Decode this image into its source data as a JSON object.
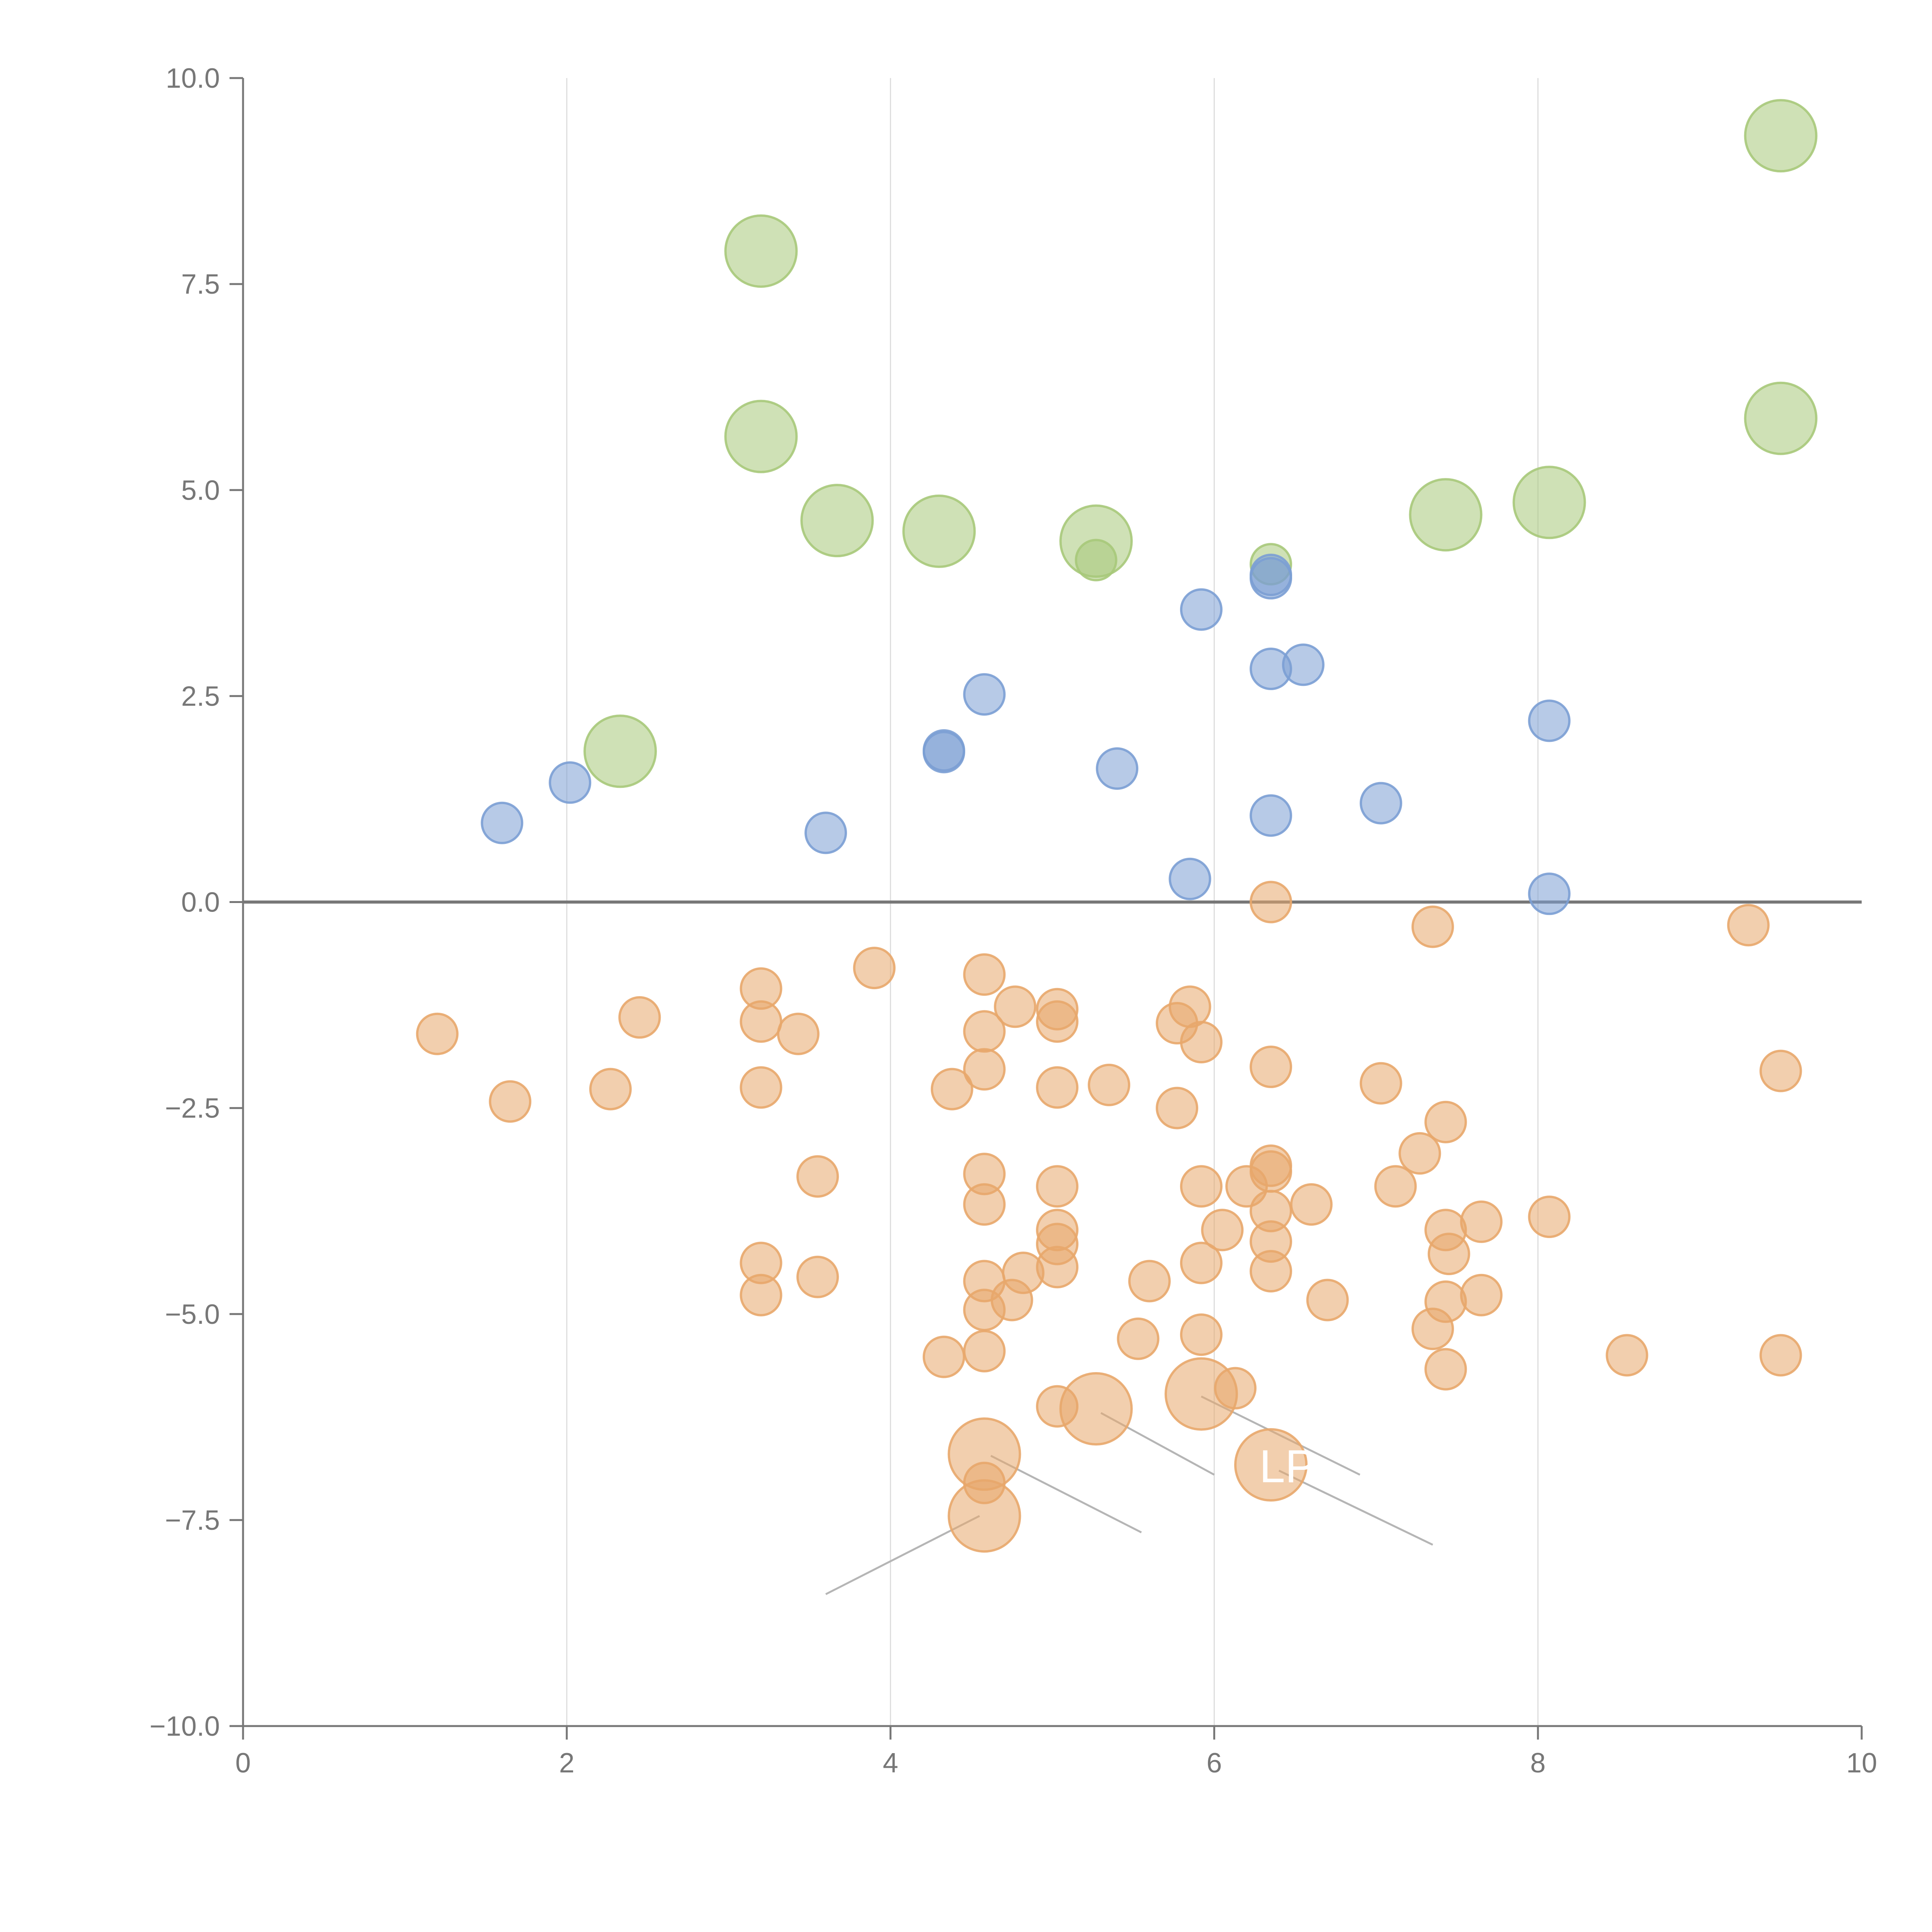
{
  "chart_data": {
    "type": "scatter",
    "title": "",
    "xlabel": "",
    "ylabel": "",
    "xlim": [
      0,
      10
    ],
    "ylim": [
      -10,
      10
    ],
    "x_ticks": [
      0,
      2,
      4,
      6,
      8,
      10
    ],
    "y_ticks": [
      -10,
      -7.5,
      -5,
      -2.5,
      0,
      2.5,
      5,
      7.5,
      10
    ],
    "x_tick_labels": [
      "0",
      "2",
      "4",
      "6",
      "8",
      "10"
    ],
    "y_tick_labels": [
      "−10.0",
      "−7.5",
      "−5.0",
      "−2.5",
      "0.0",
      "2.5",
      "5.0",
      "7.5",
      "10.0"
    ],
    "vertical_gridlines": [
      2,
      4,
      6,
      8
    ],
    "zero_line": 0,
    "colors": {
      "green": "#a7c97a",
      "blue": "#7b9fd4",
      "orange": "#e8a76b",
      "axis": "#777777",
      "grid": "#dddddd",
      "leader": "#b5b5b5"
    },
    "series": [
      {
        "name": "green",
        "color": "#a7c97a",
        "size": "large",
        "points": [
          [
            9.5,
            9.3
          ],
          [
            3.2,
            7.9
          ],
          [
            3.2,
            5.65
          ],
          [
            3.67,
            4.63
          ],
          [
            4.3,
            4.5
          ],
          [
            5.27,
            4.38
          ],
          [
            7.43,
            4.7
          ],
          [
            8.07,
            4.85
          ],
          [
            9.5,
            5.87
          ],
          [
            2.33,
            1.83
          ]
        ]
      },
      {
        "name": "green-small",
        "color": "#a7c97a",
        "size": "small",
        "points": [
          [
            5.27,
            4.15
          ],
          [
            6.35,
            4.1
          ]
        ]
      },
      {
        "name": "blue",
        "color": "#7b9fd4",
        "size": "small",
        "points": [
          [
            6.35,
            3.97
          ],
          [
            6.35,
            3.93
          ],
          [
            5.92,
            3.55
          ],
          [
            6.35,
            2.83
          ],
          [
            6.55,
            2.88
          ],
          [
            4.58,
            2.52
          ],
          [
            8.07,
            2.2
          ],
          [
            4.33,
            1.84
          ],
          [
            4.33,
            1.82
          ],
          [
            2.02,
            1.45
          ],
          [
            1.6,
            0.96
          ],
          [
            5.4,
            1.62
          ],
          [
            7.03,
            1.2
          ],
          [
            6.35,
            1.05
          ],
          [
            3.6,
            0.84
          ],
          [
            5.85,
            0.28
          ],
          [
            8.07,
            0.1
          ]
        ]
      },
      {
        "name": "orange",
        "color": "#e8a76b",
        "size": "small",
        "points": [
          [
            6.35,
            0.0
          ],
          [
            7.35,
            -0.3
          ],
          [
            9.3,
            -0.28
          ],
          [
            3.9,
            -0.8
          ],
          [
            4.58,
            -0.88
          ],
          [
            3.2,
            -1.05
          ],
          [
            4.77,
            -1.27
          ],
          [
            5.03,
            -1.3
          ],
          [
            5.85,
            -1.27
          ],
          [
            2.45,
            -1.4
          ],
          [
            3.2,
            -1.45
          ],
          [
            5.03,
            -1.45
          ],
          [
            5.77,
            -1.47
          ],
          [
            1.2,
            -1.6
          ],
          [
            3.43,
            -1.6
          ],
          [
            4.58,
            -1.57
          ],
          [
            5.92,
            -1.7
          ],
          [
            4.58,
            -2.03
          ],
          [
            6.35,
            -2.0
          ],
          [
            9.5,
            -2.05
          ],
          [
            7.03,
            -2.2
          ],
          [
            3.2,
            -2.25
          ],
          [
            2.27,
            -2.27
          ],
          [
            4.38,
            -2.27
          ],
          [
            5.03,
            -2.25
          ],
          [
            5.35,
            -2.22
          ],
          [
            1.65,
            -2.42
          ],
          [
            5.77,
            -2.5
          ],
          [
            7.43,
            -2.67
          ],
          [
            7.27,
            -3.05
          ],
          [
            6.35,
            -3.2
          ],
          [
            6.35,
            -3.27
          ],
          [
            3.55,
            -3.33
          ],
          [
            4.58,
            -3.3
          ],
          [
            5.03,
            -3.45
          ],
          [
            5.92,
            -3.45
          ],
          [
            6.2,
            -3.45
          ],
          [
            7.12,
            -3.45
          ],
          [
            4.58,
            -3.67
          ],
          [
            6.6,
            -3.67
          ],
          [
            6.35,
            -3.75
          ],
          [
            8.07,
            -3.82
          ],
          [
            7.65,
            -3.88
          ],
          [
            5.03,
            -3.98
          ],
          [
            6.05,
            -3.98
          ],
          [
            7.43,
            -3.98
          ],
          [
            5.03,
            -4.15
          ],
          [
            6.35,
            -4.12
          ],
          [
            7.45,
            -4.27
          ],
          [
            3.2,
            -4.38
          ],
          [
            5.92,
            -4.38
          ],
          [
            5.03,
            -4.43
          ],
          [
            6.35,
            -4.48
          ],
          [
            4.82,
            -4.5
          ],
          [
            3.55,
            -4.55
          ],
          [
            4.58,
            -4.6
          ],
          [
            5.6,
            -4.6
          ],
          [
            3.2,
            -4.77
          ],
          [
            7.65,
            -4.77
          ],
          [
            4.75,
            -4.83
          ],
          [
            6.7,
            -4.83
          ],
          [
            7.43,
            -4.85
          ],
          [
            4.58,
            -4.95
          ],
          [
            7.35,
            -5.18
          ],
          [
            5.92,
            -5.25
          ],
          [
            5.53,
            -5.3
          ],
          [
            4.58,
            -5.45
          ],
          [
            4.33,
            -5.52
          ],
          [
            8.55,
            -5.5
          ],
          [
            9.5,
            -5.5
          ],
          [
            7.43,
            -5.67
          ],
          [
            6.13,
            -5.9
          ],
          [
            5.03,
            -6.12
          ],
          [
            4.58,
            -7.05
          ]
        ]
      },
      {
        "name": "orange-large",
        "color": "#e8a76b",
        "size": "large",
        "points": [
          [
            5.92,
            -5.97
          ],
          [
            5.27,
            -6.15
          ],
          [
            4.58,
            -6.7
          ],
          [
            6.35,
            -6.83
          ],
          [
            4.58,
            -7.45
          ]
        ]
      }
    ],
    "annotations": [
      {
        "text": "LP",
        "x": 6.35,
        "y": -6.83
      }
    ]
  }
}
